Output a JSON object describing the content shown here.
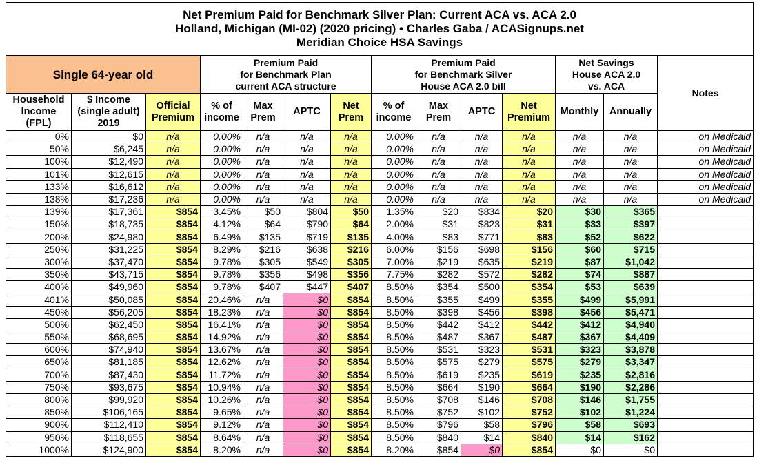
{
  "title": [
    "Net Premium Paid for Benchmark Silver Plan: Current ACA vs. ACA 2.0",
    "Holland, Michigan (MI-02) (2020 pricing) • Charles Gaba / ACASignups.net",
    "Meridian Choice HSA Savings"
  ],
  "groups": [
    [
      "Single 64-year old"
    ],
    [
      "Premium Paid",
      "for Benchmark Plan",
      "current ACA structure"
    ],
    [
      "Premium Paid",
      "for Benchmark Silver",
      "House ACA 2.0 bill"
    ],
    [
      "Net Savings",
      "House ACA 2.0",
      "vs. ACA"
    ],
    [
      "Notes"
    ]
  ],
  "columns": [
    [
      "Household",
      "Income",
      "(FPL)"
    ],
    [
      "$ Income",
      "(single adult)",
      "2019"
    ],
    [
      "Official",
      "Premium"
    ],
    [
      "% of",
      "income"
    ],
    [
      "Max",
      "Prem"
    ],
    [
      "APTC"
    ],
    [
      "Net",
      "Prem"
    ],
    [
      "% of",
      "income"
    ],
    [
      "Max",
      "Prem"
    ],
    [
      "APTC"
    ],
    [
      "Net",
      "Premium"
    ],
    [
      "Monthly"
    ],
    [
      "Annually"
    ]
  ],
  "rows": [
    [
      "0%",
      "$0",
      "n/a",
      "0.00%",
      "n/a",
      "n/a",
      "n/a",
      "0.00%",
      "n/a",
      "n/a",
      "n/a",
      "n/a",
      "n/a",
      "on Medicaid"
    ],
    [
      "50%",
      "$6,245",
      "n/a",
      "0.00%",
      "n/a",
      "n/a",
      "n/a",
      "0.00%",
      "n/a",
      "n/a",
      "n/a",
      "n/a",
      "n/a",
      "on Medicaid"
    ],
    [
      "100%",
      "$12,490",
      "n/a",
      "0.00%",
      "n/a",
      "n/a",
      "n/a",
      "0.00%",
      "n/a",
      "n/a",
      "n/a",
      "n/a",
      "n/a",
      "on Medicaid"
    ],
    [
      "101%",
      "$12,615",
      "n/a",
      "0.00%",
      "n/a",
      "n/a",
      "n/a",
      "0.00%",
      "n/a",
      "n/a",
      "n/a",
      "n/a",
      "n/a",
      "on Medicaid"
    ],
    [
      "133%",
      "$16,612",
      "n/a",
      "0.00%",
      "n/a",
      "n/a",
      "n/a",
      "0.00%",
      "n/a",
      "n/a",
      "n/a",
      "n/a",
      "n/a",
      "on Medicaid"
    ],
    [
      "138%",
      "$17,236",
      "n/a",
      "0.00%",
      "n/a",
      "n/a",
      "n/a",
      "0.00%",
      "n/a",
      "n/a",
      "n/a",
      "n/a",
      "n/a",
      "on Medicaid"
    ],
    [
      "139%",
      "$17,361",
      "$854",
      "3.45%",
      "$50",
      "$804",
      "$50",
      "1.35%",
      "$20",
      "$834",
      "$20",
      "$30",
      "$365"
    ],
    [
      "150%",
      "$18,735",
      "$854",
      "4.12%",
      "$64",
      "$790",
      "$64",
      "2.00%",
      "$31",
      "$823",
      "$31",
      "$33",
      "$397"
    ],
    [
      "200%",
      "$24,980",
      "$854",
      "6.49%",
      "$135",
      "$719",
      "$135",
      "4.00%",
      "$83",
      "$771",
      "$83",
      "$52",
      "$622"
    ],
    [
      "250%",
      "$31,225",
      "$854",
      "8.29%",
      "$216",
      "$638",
      "$216",
      "6.00%",
      "$156",
      "$698",
      "$156",
      "$60",
      "$715"
    ],
    [
      "300%",
      "$37,470",
      "$854",
      "9.78%",
      "$305",
      "$549",
      "$305",
      "7.00%",
      "$219",
      "$635",
      "$219",
      "$87",
      "$1,042"
    ],
    [
      "350%",
      "$43,715",
      "$854",
      "9.78%",
      "$356",
      "$498",
      "$356",
      "7.75%",
      "$282",
      "$572",
      "$282",
      "$74",
      "$887"
    ],
    [
      "400%",
      "$49,960",
      "$854",
      "9.78%",
      "$407",
      "$447",
      "$407",
      "8.50%",
      "$354",
      "$500",
      "$354",
      "$53",
      "$639"
    ],
    [
      "401%",
      "$50,085",
      "$854",
      "20.46%",
      "n/a",
      "$0",
      "$854",
      "8.50%",
      "$355",
      "$499",
      "$355",
      "$499",
      "$5,991"
    ],
    [
      "450%",
      "$56,205",
      "$854",
      "18.23%",
      "n/a",
      "$0",
      "$854",
      "8.50%",
      "$398",
      "$456",
      "$398",
      "$456",
      "$5,471"
    ],
    [
      "500%",
      "$62,450",
      "$854",
      "16.41%",
      "n/a",
      "$0",
      "$854",
      "8.50%",
      "$442",
      "$412",
      "$442",
      "$412",
      "$4,940"
    ],
    [
      "550%",
      "$68,695",
      "$854",
      "14.92%",
      "n/a",
      "$0",
      "$854",
      "8.50%",
      "$487",
      "$367",
      "$487",
      "$367",
      "$4,409"
    ],
    [
      "600%",
      "$74,940",
      "$854",
      "13.67%",
      "n/a",
      "$0",
      "$854",
      "8.50%",
      "$531",
      "$323",
      "$531",
      "$323",
      "$3,878"
    ],
    [
      "650%",
      "$81,185",
      "$854",
      "12.62%",
      "n/a",
      "$0",
      "$854",
      "8.50%",
      "$575",
      "$279",
      "$575",
      "$279",
      "$3,347"
    ],
    [
      "700%",
      "$87,430",
      "$854",
      "11.72%",
      "n/a",
      "$0",
      "$854",
      "8.50%",
      "$619",
      "$235",
      "$619",
      "$235",
      "$2,816"
    ],
    [
      "750%",
      "$93,675",
      "$854",
      "10.94%",
      "n/a",
      "$0",
      "$854",
      "8.50%",
      "$664",
      "$190",
      "$664",
      "$190",
      "$2,286"
    ],
    [
      "800%",
      "$99,920",
      "$854",
      "10.26%",
      "n/a",
      "$0",
      "$854",
      "8.50%",
      "$708",
      "$146",
      "$708",
      "$146",
      "$1,755"
    ],
    [
      "850%",
      "$106,165",
      "$854",
      "9.65%",
      "n/a",
      "$0",
      "$854",
      "8.50%",
      "$752",
      "$102",
      "$752",
      "$102",
      "$1,224"
    ],
    [
      "900%",
      "$112,410",
      "$854",
      "9.12%",
      "n/a",
      "$0",
      "$854",
      "8.50%",
      "$796",
      "$58",
      "$796",
      "$58",
      "$693"
    ],
    [
      "950%",
      "$118,655",
      "$854",
      "8.64%",
      "n/a",
      "$0",
      "$854",
      "8.50%",
      "$840",
      "$14",
      "$840",
      "$14",
      "$162"
    ],
    [
      "1000%",
      "$124,900",
      "$854",
      "8.20%",
      "n/a",
      "$0",
      "$854",
      "8.20%",
      "$854",
      "$0",
      "$854",
      "$0",
      "$0"
    ]
  ]
}
